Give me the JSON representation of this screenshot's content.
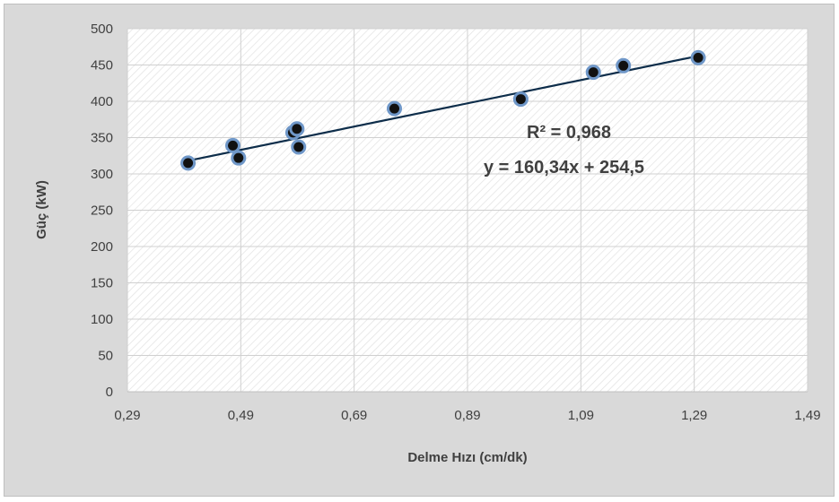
{
  "chart_data": {
    "type": "scatter",
    "title": "",
    "xlabel": "Delme Hızı (cm/dk)",
    "ylabel": "Güç (kW)",
    "xlim": [
      0.29,
      1.49
    ],
    "ylim": [
      0,
      500
    ],
    "x_ticks": [
      "0,29",
      "0,49",
      "0,69",
      "0,89",
      "1,09",
      "1,29",
      "1,49"
    ],
    "y_ticks": [
      "0",
      "50",
      "100",
      "150",
      "200",
      "250",
      "300",
      "350",
      "400",
      "450",
      "500"
    ],
    "grid": true,
    "legend": "none",
    "trendline": {
      "slope": 160.34,
      "intercept": 254.5
    },
    "annotations": {
      "r2": "R² = 0,968",
      "equation": "y = 160,34x + 254,5"
    },
    "series": [
      {
        "points": [
          [
            0.397,
            315
          ],
          [
            0.476,
            339
          ],
          [
            0.486,
            322
          ],
          [
            0.582,
            357
          ],
          [
            0.589,
            362
          ],
          [
            0.592,
            337
          ],
          [
            0.761,
            390
          ],
          [
            0.984,
            403
          ],
          [
            1.112,
            440
          ],
          [
            1.165,
            449
          ],
          [
            1.297,
            460
          ]
        ]
      }
    ],
    "colors": {
      "point_fill": "#111111",
      "point_ring": "#6f97c8",
      "line": "#0d2d4a",
      "background": "#d9d9d9",
      "plot": "#ffffff",
      "grid": "#d0d0d0"
    }
  }
}
